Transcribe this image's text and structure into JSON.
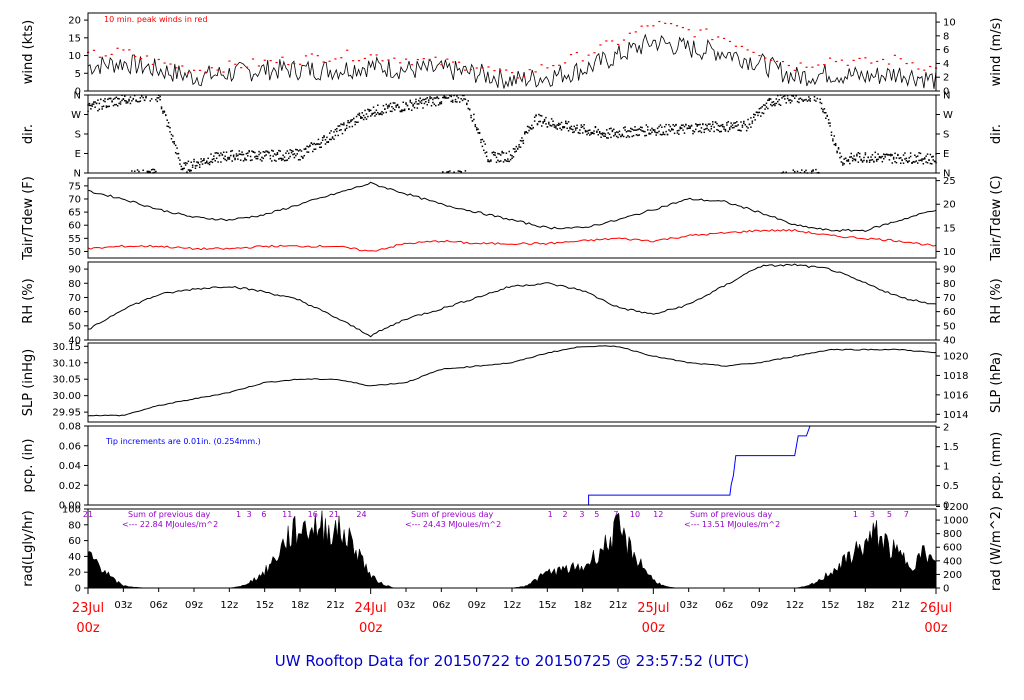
{
  "title": "UW Rooftop Data for 20150722  to  20150725 @ 23:57:52  (UTC)",
  "colors": {
    "black": "#000000",
    "red": "#ff0000",
    "blue": "#0000ff",
    "purple": "#9900cc",
    "title": "#0000cc"
  },
  "x_axis": {
    "hour_ticks": [
      "03z",
      "06z",
      "09z",
      "12z",
      "15z",
      "18z",
      "21z",
      "03z",
      "06z",
      "09z",
      "12z",
      "15z",
      "18z",
      "21z",
      "03z",
      "06z",
      "09z",
      "12z",
      "15z",
      "18z",
      "21z"
    ],
    "day_labels": [
      {
        "date": "23Jul",
        "time": "00z"
      },
      {
        "date": "24Jul",
        "time": "00z"
      },
      {
        "date": "25Jul",
        "time": "00z"
      },
      {
        "date": "26Jul",
        "time": "00z"
      }
    ]
  },
  "chart_data": [
    {
      "type": "line",
      "name": "wind",
      "ylabel_left": "wind (kts)",
      "ylabel_right": "wind (m/s)",
      "ylim": [
        0,
        22
      ],
      "yticks_left": [
        "0",
        "5",
        "10",
        "15",
        "20"
      ],
      "yticks_right": [
        "0",
        "2",
        "4",
        "6",
        "8",
        "10"
      ],
      "annotation": "10 min. peak winds in red",
      "series": [
        {
          "x_hours": [
            0,
            3,
            6,
            9,
            12,
            15,
            18,
            21,
            24,
            27,
            30,
            33,
            36,
            39,
            42,
            45,
            48,
            51,
            54,
            57,
            60,
            63,
            66,
            69,
            72
          ],
          "values": [
            7,
            8,
            6,
            4,
            5,
            6,
            6,
            6,
            7,
            6,
            6,
            5,
            3,
            4,
            6,
            10,
            14,
            12,
            11,
            8,
            4,
            5,
            4,
            5,
            3
          ]
        },
        {
          "x_hours": [
            0,
            3,
            6,
            9,
            12,
            15,
            18,
            21,
            24,
            27,
            30,
            33,
            36,
            39,
            42,
            45,
            48,
            51,
            54,
            57,
            60,
            63,
            66,
            69,
            72
          ],
          "values": [
            10,
            11,
            8,
            6,
            7,
            8,
            9,
            10,
            10,
            9,
            8,
            7,
            4,
            7,
            10,
            14,
            19,
            17,
            15,
            11,
            7,
            9,
            8,
            9,
            6
          ]
        }
      ]
    },
    {
      "type": "scatter",
      "name": "direction",
      "ylabel_left": "dir.",
      "ylabel_right": "dir.",
      "yticks_left": [
        "N",
        "E",
        "S",
        "W",
        "N"
      ],
      "yticks_right": [
        "N",
        "E",
        "S",
        "W",
        "N"
      ],
      "x_hours": [
        0,
        2,
        4,
        6,
        8,
        10,
        12,
        14,
        16,
        18,
        20,
        22,
        24,
        26,
        28,
        30,
        32,
        34,
        36,
        38,
        40,
        42,
        44,
        46,
        48,
        50,
        52,
        54,
        56,
        58,
        60,
        62,
        64,
        66,
        68,
        70,
        72
      ],
      "values_deg": [
        300,
        330,
        350,
        355,
        20,
        60,
        80,
        80,
        80,
        85,
        150,
        220,
        285,
        300,
        320,
        340,
        355,
        70,
        80,
        250,
        220,
        200,
        180,
        190,
        200,
        200,
        210,
        215,
        220,
        330,
        350,
        355,
        60,
        75,
        70,
        70,
        65
      ]
    },
    {
      "type": "line",
      "name": "temperature",
      "ylabel_left": "Tair/Tdew (F)",
      "ylabel_right": "Tair/Tdew (C)",
      "ylim": [
        47.5,
        78
      ],
      "yticks_left": [
        "50",
        "55",
        "60",
        "65",
        "70",
        "75"
      ],
      "yticks_right": [
        "10",
        "15",
        "20",
        "25"
      ],
      "series": [
        {
          "x_hours": [
            0,
            3,
            6,
            9,
            12,
            15,
            18,
            21,
            24,
            27,
            30,
            33,
            36,
            39,
            42,
            45,
            48,
            51,
            54,
            57,
            60,
            63,
            66,
            69,
            72
          ],
          "values": [
            73,
            70,
            66,
            63,
            62,
            64,
            68,
            72,
            76,
            72,
            68,
            65,
            62,
            59,
            59,
            62,
            66,
            70,
            69,
            65,
            60,
            58,
            58,
            62,
            66
          ]
        },
        {
          "x_hours": [
            0,
            3,
            6,
            9,
            12,
            15,
            18,
            21,
            24,
            27,
            30,
            33,
            36,
            39,
            42,
            45,
            48,
            51,
            54,
            57,
            60,
            63,
            66,
            69,
            72
          ],
          "values": [
            51,
            52,
            52,
            51,
            51,
            52,
            52,
            52,
            50,
            53,
            54,
            53,
            53,
            53,
            54,
            55,
            54,
            56,
            57,
            58,
            58,
            56,
            55,
            54,
            52
          ]
        }
      ]
    },
    {
      "type": "line",
      "name": "relative-humidity",
      "ylabel_left": "RH (%)",
      "ylabel_right": "RH (%)",
      "ylim": [
        40,
        95
      ],
      "yticks_left": [
        "40",
        "50",
        "60",
        "70",
        "80",
        "90"
      ],
      "yticks_right": [
        "40",
        "50",
        "60",
        "70",
        "80",
        "90"
      ],
      "values_x_hours": [
        0,
        3,
        6,
        9,
        12,
        15,
        18,
        21,
        24,
        27,
        30,
        33,
        36,
        39,
        42,
        45,
        48,
        51,
        54,
        57,
        60,
        63,
        66,
        69,
        72
      ],
      "values": [
        47,
        62,
        72,
        76,
        78,
        74,
        68,
        56,
        43,
        55,
        62,
        70,
        78,
        80,
        75,
        63,
        58,
        65,
        78,
        92,
        93,
        90,
        80,
        70,
        65
      ]
    },
    {
      "type": "line",
      "name": "sea-level-pressure",
      "ylabel_left": "SLP (inHg)",
      "ylabel_right": "SLP (hPa)",
      "ylim": [
        29.92,
        30.16
      ],
      "yticks_left": [
        "29.95",
        "30.00",
        "30.05",
        "30.10",
        "30.15"
      ],
      "yticks_right": [
        "1014",
        "1016",
        "1018",
        "1020"
      ],
      "values_x_hours": [
        0,
        3,
        6,
        9,
        12,
        15,
        18,
        21,
        24,
        27,
        30,
        33,
        36,
        39,
        42,
        45,
        48,
        51,
        54,
        57,
        60,
        63,
        66,
        69,
        72
      ],
      "values": [
        29.94,
        29.94,
        29.97,
        29.99,
        30.01,
        30.04,
        30.05,
        30.05,
        30.03,
        30.04,
        30.08,
        30.09,
        30.1,
        30.13,
        30.15,
        30.15,
        30.12,
        30.1,
        30.09,
        30.1,
        30.12,
        30.14,
        30.14,
        30.14,
        30.13
      ]
    },
    {
      "type": "line",
      "name": "precipitation",
      "ylabel_left": "pcp. (in)",
      "ylabel_right": "pcp. (mm)",
      "ylim": [
        0,
        0.08
      ],
      "yticks_left": [
        "0.00",
        "0.02",
        "0.04",
        "0.06",
        "0.08"
      ],
      "yticks_right": [
        "0",
        "0.5",
        "1",
        "1.5",
        "2"
      ],
      "annotation": "Tip increments are 0.01in. (0.254mm.)",
      "values_x_hours": [
        0,
        42.5,
        42.5,
        54.5,
        54.6,
        54.8,
        55,
        60,
        60.3,
        61,
        61.3,
        63,
        72
      ],
      "values": [
        0,
        0,
        0.01,
        0.01,
        0.02,
        0.03,
        0.05,
        0.05,
        0.07,
        0.07,
        0.08,
        0.08,
        0.08
      ]
    },
    {
      "type": "area",
      "name": "solar-radiation",
      "ylabel_left": "rad(Lgly/hr)",
      "ylabel_right": "rad (W/m^2)",
      "ylim": [
        0,
        100
      ],
      "yticks_left": [
        "0",
        "20",
        "40",
        "60",
        "80",
        "100"
      ],
      "yticks_right": [
        "0",
        "200",
        "400",
        "600",
        "800",
        "1000",
        "1200"
      ],
      "top_hour_labels": [
        "21",
        "1",
        "3",
        "6",
        "11",
        "16",
        "21",
        "24",
        "1",
        "2",
        "3",
        "5",
        "7",
        "10",
        "12",
        "1",
        "3",
        "5",
        "7"
      ],
      "day_sums": [
        {
          "line1": "Sum of previous day",
          "line2": "<--- 22.84 MJoules/m^2"
        },
        {
          "line1": "Sum of previous day",
          "line2": "<--- 24.43 MJoules/m^2"
        },
        {
          "line1": "Sum of previous day",
          "line2": "<--- 13.51 MJoules/m^2"
        }
      ],
      "values_x_hours": [
        0,
        1,
        2,
        3,
        4,
        5,
        6,
        12,
        13,
        14,
        15,
        16,
        17,
        18,
        19,
        20,
        21,
        22,
        23,
        24,
        25,
        26,
        30,
        36,
        37,
        38,
        39,
        40,
        41,
        42,
        43,
        44,
        45,
        46,
        47,
        48,
        49,
        50,
        51,
        54,
        60,
        61,
        62,
        63,
        64,
        65,
        66,
        67,
        68,
        69,
        70,
        71,
        72
      ],
      "values": [
        42,
        30,
        12,
        3,
        1,
        0,
        0,
        0,
        2,
        10,
        20,
        40,
        65,
        75,
        78,
        77,
        74,
        65,
        45,
        15,
        5,
        0,
        0,
        0,
        2,
        10,
        20,
        22,
        25,
        25,
        40,
        55,
        75,
        50,
        30,
        10,
        2,
        0,
        0,
        0,
        0,
        2,
        8,
        20,
        30,
        45,
        55,
        70,
        52,
        40,
        30,
        45,
        30
      ]
    }
  ]
}
